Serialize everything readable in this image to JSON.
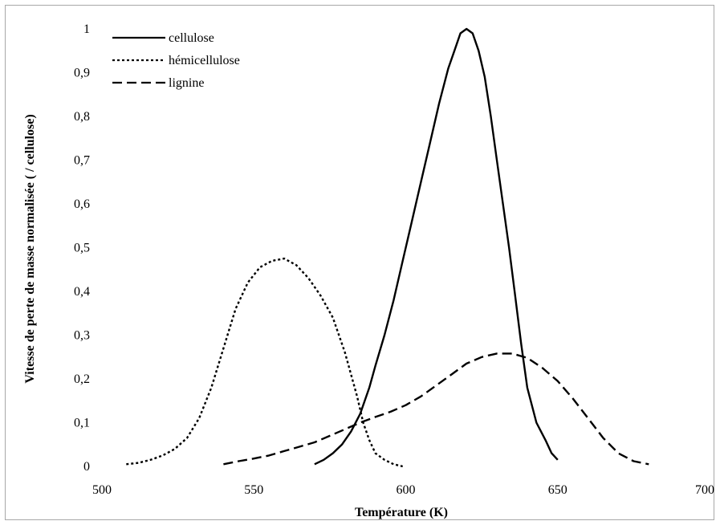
{
  "chart_data": {
    "type": "line",
    "xlabel": "Température (K)",
    "ylabel": "Vitesse de perte de masse normalisée ( / cellulose)",
    "xlim": [
      500,
      700
    ],
    "ylim": [
      0,
      1
    ],
    "x_ticks": [
      "500",
      "550",
      "600",
      "650",
      "700"
    ],
    "y_ticks": [
      "0",
      "0,1",
      "0,2",
      "0,3",
      "0,4",
      "0,5",
      "0,6",
      "0,7",
      "0,8",
      "0,9",
      "1"
    ],
    "grid": false,
    "legend": "top-left",
    "series": [
      {
        "name": "cellulose",
        "style": "solid",
        "x": [
          570,
          573,
          576,
          579,
          582,
          585,
          588,
          590,
          593,
          596,
          599,
          602,
          605,
          608,
          611,
          614,
          616,
          618,
          620,
          622,
          624,
          626,
          628,
          630,
          632,
          634,
          636,
          638,
          640,
          643,
          646,
          648,
          650
        ],
        "y": [
          0.005,
          0.015,
          0.03,
          0.05,
          0.08,
          0.12,
          0.18,
          0.23,
          0.3,
          0.38,
          0.47,
          0.56,
          0.65,
          0.74,
          0.83,
          0.91,
          0.95,
          0.99,
          1.0,
          0.99,
          0.95,
          0.89,
          0.8,
          0.7,
          0.6,
          0.5,
          0.39,
          0.28,
          0.18,
          0.1,
          0.06,
          0.03,
          0.015
        ]
      },
      {
        "name": "hémicellulose",
        "style": "dotted",
        "x": [
          508,
          512,
          516,
          520,
          524,
          528,
          532,
          536,
          540,
          544,
          548,
          552,
          556,
          560,
          564,
          568,
          572,
          576,
          580,
          584,
          586,
          588,
          590,
          593,
          596,
          599
        ],
        "y": [
          0.005,
          0.008,
          0.015,
          0.025,
          0.04,
          0.065,
          0.11,
          0.18,
          0.27,
          0.36,
          0.42,
          0.455,
          0.47,
          0.475,
          0.46,
          0.43,
          0.39,
          0.34,
          0.26,
          0.16,
          0.1,
          0.06,
          0.03,
          0.015,
          0.005,
          0.0
        ]
      },
      {
        "name": "lignine",
        "style": "dashed",
        "x": [
          540,
          545,
          550,
          555,
          560,
          565,
          570,
          575,
          580,
          585,
          590,
          595,
          600,
          605,
          610,
          615,
          620,
          625,
          630,
          635,
          640,
          645,
          650,
          655,
          660,
          665,
          670,
          675,
          680
        ],
        "y": [
          0.005,
          0.012,
          0.018,
          0.025,
          0.035,
          0.045,
          0.055,
          0.07,
          0.085,
          0.1,
          0.113,
          0.125,
          0.14,
          0.16,
          0.185,
          0.21,
          0.235,
          0.25,
          0.258,
          0.258,
          0.248,
          0.225,
          0.195,
          0.155,
          0.11,
          0.065,
          0.03,
          0.012,
          0.005
        ]
      }
    ]
  }
}
